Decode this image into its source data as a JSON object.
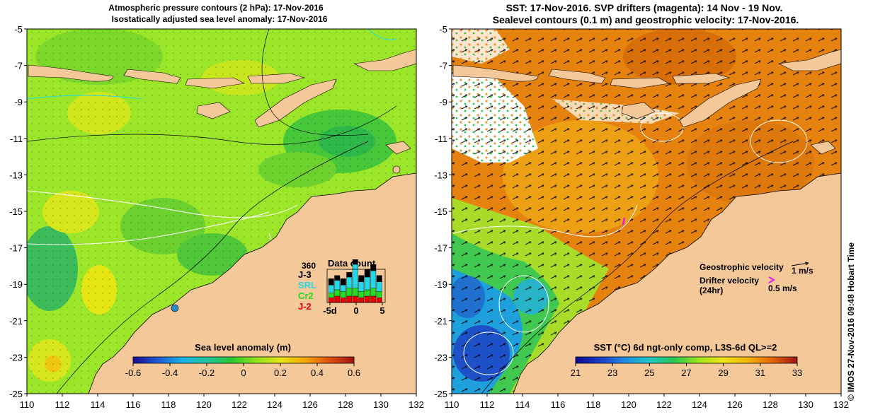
{
  "left_panel": {
    "title_line1": "Atmospheric pressure contours (2 hPa): 17-Nov-2016",
    "title_line2": "Isostatically adjusted sea level anomaly: 17-Nov-2016",
    "colorbar_title": "Sea level anomaly (m)",
    "colorbar_ticks": [
      "-0.6",
      "-0.4",
      "-0.2",
      "0",
      "0.2",
      "0.4",
      "0.6"
    ],
    "colorbar_colors": [
      "#1a0a8c",
      "#1e5ad8",
      "#1ab4e6",
      "#20c8a0",
      "#28c832",
      "#8ee61e",
      "#e6e614",
      "#f5aa0a",
      "#e0500a",
      "#a01414"
    ],
    "data_count": {
      "max_label": "360",
      "title": "Data count",
      "missions": [
        {
          "name": "J-3",
          "color": "#000000"
        },
        {
          "name": "SRL",
          "color": "#22d8e8"
        },
        {
          "name": "Cr2",
          "color": "#22dd22"
        },
        {
          "name": "J-2",
          "color": "#ee0000"
        }
      ],
      "x_ticks": [
        "-5d",
        "0",
        "5"
      ],
      "bars": [
        {
          "j2": 0.15,
          "cr2": 0.15,
          "srl": 0.25,
          "j3": 0.2
        },
        {
          "j2": 0.2,
          "cr2": 0.2,
          "srl": 0.3,
          "j3": 0.15
        },
        {
          "j2": 0.15,
          "cr2": 0.2,
          "srl": 0.2,
          "j3": 0.2
        },
        {
          "j2": 0.2,
          "cr2": 0.25,
          "srl": 0.35,
          "j3": 0.15
        },
        {
          "j2": 0.2,
          "cr2": 0.25,
          "srl": 0.75,
          "j3": 0.15
        },
        {
          "j2": 0.15,
          "cr2": 0.2,
          "srl": 0.3,
          "j3": 0.2
        },
        {
          "j2": 0.2,
          "cr2": 0.2,
          "srl": 0.4,
          "j3": 0.25
        },
        {
          "j2": 0.2,
          "cr2": 0.25,
          "srl": 0.55,
          "j3": 0.2
        },
        {
          "j2": 0.15,
          "cr2": 0.2,
          "srl": 0.3,
          "j3": 0.2
        }
      ]
    }
  },
  "right_panel": {
    "title_line1": "SST: 17-Nov-2016. SVP drifters (magenta): 14 Nov - 19 Nov.",
    "title_line2": "Sealevel contours (0.1 m) and geostrophic velocity: 17-Nov-2016.",
    "legend_geo": "Geostrophic velocity",
    "legend_geo_value": "1 m/s",
    "legend_drifter": "Drifter velocity",
    "legend_drifter_sub": "(24hr)",
    "legend_drifter_value": "0.5 m/s",
    "colorbar_title": "SST (°C) 6d ngt-only comp, L3S-6d QL>=2",
    "colorbar_ticks": [
      "21",
      "23",
      "25",
      "27",
      "29",
      "31",
      "33"
    ],
    "colorbar_colors": [
      "#0a0a8c",
      "#1e3cc8",
      "#1e8ce6",
      "#1ec8c8",
      "#28c850",
      "#a0e61e",
      "#f0e614",
      "#f5b40a",
      "#e6640a",
      "#a01414"
    ],
    "credit": "© IMOS 27-Nov-2016 09:48 Hobart Time"
  },
  "map": {
    "lon_ticks": [
      "110",
      "112",
      "114",
      "116",
      "118",
      "120",
      "122",
      "124",
      "126",
      "128",
      "130",
      "132"
    ],
    "lat_ticks": [
      "-5",
      "-7",
      "-9",
      "-11",
      "-13",
      "-15",
      "-17",
      "-19",
      "-21",
      "-23",
      "-25"
    ],
    "ocean_color": "#9ce62a",
    "land_color": "#f5c89a",
    "sst_base_color": "#e6820f"
  }
}
